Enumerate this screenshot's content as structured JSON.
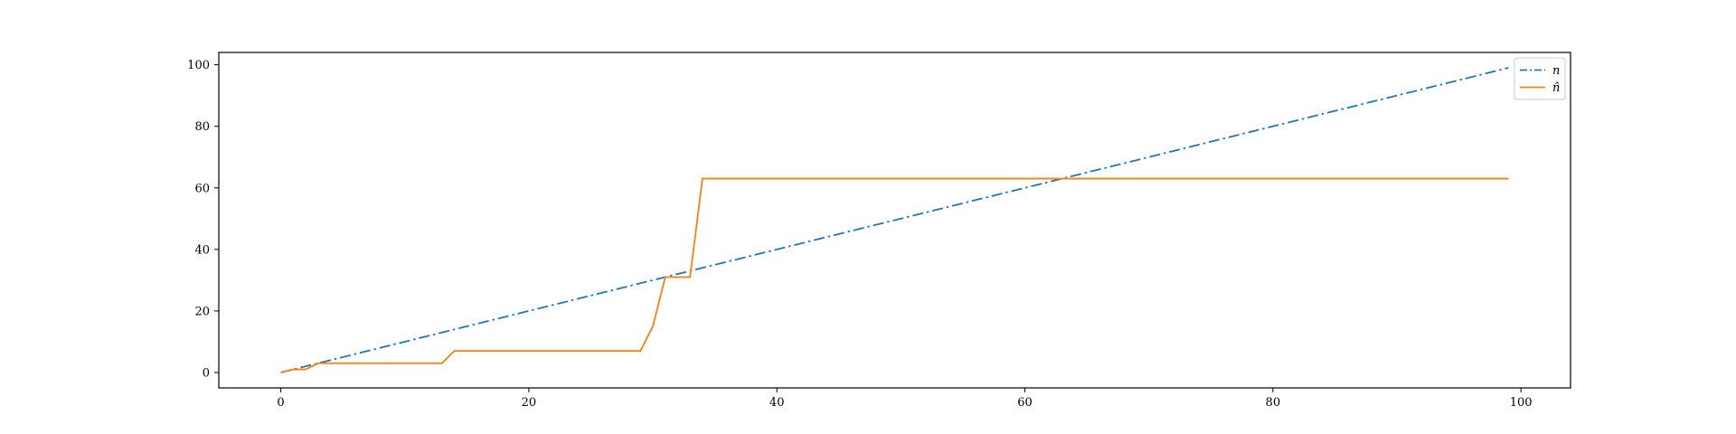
{
  "chart_data": {
    "type": "line",
    "title": "",
    "xlabel": "",
    "ylabel": "",
    "xlim": [
      -5,
      104
    ],
    "ylim": [
      -5,
      104
    ],
    "xticks": [
      0,
      20,
      40,
      60,
      80,
      100
    ],
    "yticks": [
      0,
      20,
      40,
      60,
      80,
      100
    ],
    "grid": false,
    "legend_position": "top-right",
    "series": [
      {
        "name": "n",
        "color": "#1f77b4",
        "style": "dashdot",
        "x": [
          0,
          99
        ],
        "y": [
          0,
          99
        ]
      },
      {
        "name": "n̂",
        "color": "#ff7f0e",
        "style": "solid",
        "x": [
          0,
          1,
          2,
          3,
          13,
          14,
          29,
          30,
          31,
          33,
          34,
          99
        ],
        "y": [
          0,
          1,
          1,
          3,
          3,
          7,
          7,
          15,
          31,
          31,
          63,
          63
        ]
      }
    ]
  }
}
